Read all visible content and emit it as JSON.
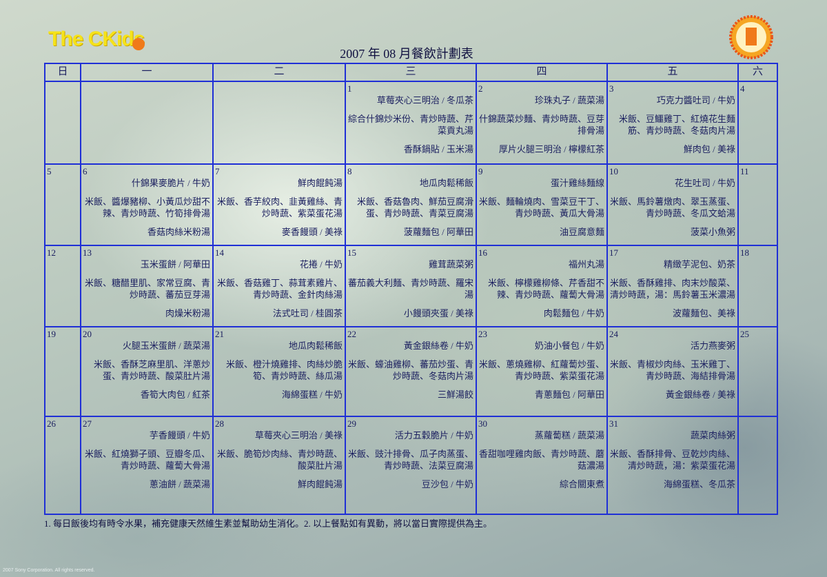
{
  "logo": "The CKids",
  "title": "2007 年 08 月餐飲計劃表",
  "weekdays": [
    "日",
    "一",
    "二",
    "三",
    "四",
    "五",
    "六"
  ],
  "weeks": [
    [
      {},
      {},
      {},
      {
        "day": "1",
        "items": [
          "草莓夾心三明治 / 冬瓜茶",
          "綜合什錦炒米份、青炒時蔬、芹菜貢丸湯",
          "香酥鍋貼 / 玉米湯"
        ]
      },
      {
        "day": "2",
        "items": [
          "珍珠丸子 / 蔬菜湯",
          "什錦蔬菜炒麵、青炒時蔬、豆芽排骨湯",
          "厚片火腿三明治 / 檸檬紅茶"
        ]
      },
      {
        "day": "3",
        "items": [
          "巧克力醬吐司 / 牛奶",
          "米飯、豆鱷雞丁、紅燒花生麵筋、青炒時蔬、冬菇肉片湯",
          "鮮肉包 / 美祿"
        ]
      },
      {
        "day": "4"
      }
    ],
    [
      {
        "day": "5"
      },
      {
        "day": "6",
        "items": [
          "什錦果麥脆片 / 牛奶",
          "米飯、醬爆豬柳、小黃瓜炒甜不辣、青炒時蔬、竹筍排骨湯",
          "香菇肉絲米粉湯"
        ]
      },
      {
        "day": "7",
        "items": [
          "鮮肉餛飩湯",
          "米飯、香芋絞肉、韭黃雞絲、青炒時蔬、紫菜蛋花湯",
          "麥香饅頭 / 美祿"
        ]
      },
      {
        "day": "8",
        "items": [
          "地瓜肉鬆稀飯",
          "米飯、香菇魯肉、鮮茄豆腐滑蛋、青炒時蔬、青菜豆腐湯",
          "菠蘿麵包 / 阿華田"
        ]
      },
      {
        "day": "9",
        "items": [
          "蛋汁雞絲麵線",
          "米飯、麵輪燒肉、雪菜豆干丁、青炒時蔬、黃瓜大骨湯",
          "油豆腐意麵"
        ]
      },
      {
        "day": "10",
        "items": [
          "花生吐司 / 牛奶",
          "米飯、馬鈴薯燉肉、翠玉蒸蛋、青炒時蔬、冬瓜文蛤湯",
          "菠菜小魚粥"
        ]
      },
      {
        "day": "11"
      }
    ],
    [
      {
        "day": "12"
      },
      {
        "day": "13",
        "items": [
          "玉米蛋餅 / 阿華田",
          "米飯、糖醋里肌、家常豆腐、青炒時蔬、蕃茄豆芽湯",
          "肉燥米粉湯"
        ]
      },
      {
        "day": "14",
        "items": [
          "花捲 / 牛奶",
          "米飯、香菇雞丁、蒜茸素雞片、青炒時蔬、金針肉絲湯",
          "法式吐司 / 桂圓茶"
        ]
      },
      {
        "day": "15",
        "items": [
          "雞茸蔬菜粥",
          "蕃茄義大利麵、青炒時蔬、羅宋湯",
          "小饅頭夾蛋 / 美祿"
        ]
      },
      {
        "day": "16",
        "items": [
          "福州丸湯",
          "米飯、檸檬雞柳條、芹香甜不辣、青炒時蔬、蘿蔔大骨湯",
          "肉鬆麵包 / 牛奶"
        ]
      },
      {
        "day": "17",
        "items": [
          "精緻芋泥包、奶茶",
          "米飯、香酥雞排、肉末炒酸菜、清炒時蔬，湯：馬鈴薯玉米濃湯",
          "波蘿麵包、美祿"
        ]
      },
      {
        "day": "18"
      }
    ],
    [
      {
        "day": "19"
      },
      {
        "day": "20",
        "items": [
          "火腿玉米蛋餅 / 蔬菜湯",
          "米飯、香酥芝麻里肌、洋蔥炒蛋、青炒時蔬、酸菜肚片湯",
          "香筍大肉包 / 紅茶"
        ]
      },
      {
        "day": "21",
        "items": [
          "地瓜肉鬆稀飯",
          "米飯、橙汁燒雞排、肉絲炒脆筍、青炒時蔬、絲瓜湯",
          "海綿蛋糕 / 牛奶"
        ]
      },
      {
        "day": "22",
        "items": [
          "黃金銀絲卷 / 牛奶",
          "米飯、蠔油雞柳、蕃茄炒蛋、青炒時蔬、冬菇肉片湯",
          "三鮮湯餃"
        ]
      },
      {
        "day": "23",
        "items": [
          "奶油小餐包 / 牛奶",
          "米飯、蔥燒雞柳、紅蘿蔔炒蛋、青炒時蔬、紫菜蛋花湯",
          "青蔥麵包 / 阿華田"
        ]
      },
      {
        "day": "24",
        "items": [
          "活力燕麥粥",
          "米飯、青椒炒肉絲、玉米雞丁、青炒時蔬、海結排骨湯",
          "黃金銀絲卷 / 美祿"
        ]
      },
      {
        "day": "25"
      }
    ],
    [
      {
        "day": "26"
      },
      {
        "day": "27",
        "items": [
          "芋香饅頭 / 牛奶",
          "米飯、紅燒獅子頭、豆瓣冬瓜、青炒時蔬、蘿蔔大骨湯",
          "蔥油餅 / 蔬菜湯"
        ]
      },
      {
        "day": "28",
        "items": [
          "草莓夾心三明治 / 美祿",
          "米飯、脆筍炒肉絲、青炒時蔬、酸菜肚片湯",
          "鮮肉餛飩湯"
        ]
      },
      {
        "day": "29",
        "items": [
          "活力五穀脆片 / 牛奶",
          "米飯、豉汁排骨、瓜子肉蒸蛋、青炒時蔬、法菜豆腐湯",
          "豆沙包 / 牛奶"
        ]
      },
      {
        "day": "30",
        "items": [
          "蒸蘿蔔糕 / 蔬菜湯",
          "香甜咖哩雞肉飯、青炒時蔬、蘑菇濃湯",
          "綜合關東煮"
        ]
      },
      {
        "day": "31",
        "items": [
          "蔬菜肉絲粥",
          "米飯、香酥排骨、豆乾炒肉絲、清炒時蔬，湯：紫菜蛋花湯",
          "海綿蛋糕、冬瓜茶"
        ]
      },
      {}
    ]
  ],
  "note": "1. 每日飯後均有時令水果，補充健康天然維生素並幫助幼生消化。2. 以上餐點如有異動，將以當日實際提供為主。",
  "copyright": "2007 Sony Corporation. All rights reserved."
}
